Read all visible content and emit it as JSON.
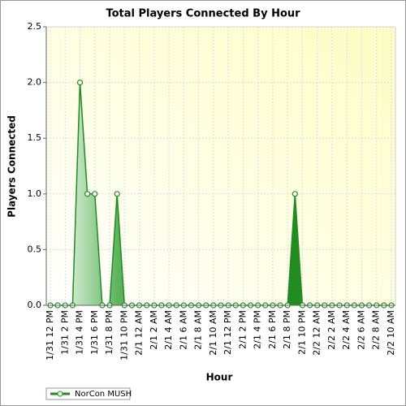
{
  "chart_data": {
    "type": "area",
    "title": "Total Players Connected By Hour",
    "x_label": "Hour",
    "y_label": "Players Connected",
    "categories": [
      "1/31 12 PM",
      null,
      "1/31 2 PM",
      null,
      "1/31 4 PM",
      null,
      "1/31 6 PM",
      null,
      "1/31 8 PM",
      null,
      "1/31 10 PM",
      null,
      "2/1 12 AM",
      null,
      "2/1 2 AM",
      null,
      "2/1 4 AM",
      null,
      "2/1 6 AM",
      null,
      "2/1 8 AM",
      null,
      "2/1 10 AM",
      null,
      "2/1 12 PM",
      null,
      "2/1 2 PM",
      null,
      "2/1 4 PM",
      null,
      "2/1 6 PM",
      null,
      "2/1 8 PM",
      null,
      "2/1 10 PM",
      null,
      "2/2 12 AM",
      null,
      "2/2 2 AM",
      null,
      "2/2 4 AM",
      null,
      "2/2 6 AM",
      null,
      "2/2 8 AM",
      null,
      "2/2 10 AM"
    ],
    "series": [
      {
        "name": "NorCon MUSH",
        "color": "#228b22",
        "values": [
          0,
          0,
          0,
          0,
          2,
          1,
          1,
          0,
          0,
          1,
          0,
          0,
          0,
          0,
          0,
          0,
          0,
          0,
          0,
          0,
          0,
          0,
          0,
          0,
          0,
          0,
          0,
          0,
          0,
          0,
          0,
          0,
          0,
          1,
          0,
          0,
          0,
          0,
          0,
          0,
          0,
          0,
          0,
          0,
          0,
          0,
          0
        ]
      }
    ],
    "ylim": [
      0,
      2.5
    ],
    "yticks": [
      {
        "value": 0,
        "label": "0.0"
      },
      0.5,
      {
        "value": 1,
        "label": "1.0"
      },
      1.5,
      {
        "value": 2,
        "label": "2.0"
      },
      2.5
    ],
    "grid": true,
    "legend": "bottom-left"
  }
}
